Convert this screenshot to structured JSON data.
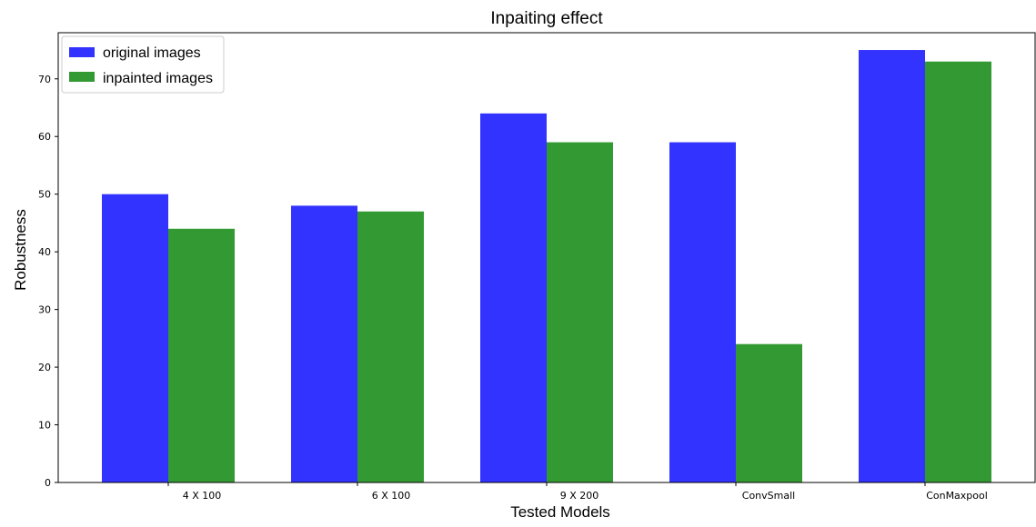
{
  "chart_data": {
    "type": "bar",
    "title": "Inpaiting effect",
    "xlabel": "Tested Models",
    "ylabel": "Robustness",
    "categories": [
      "4 X 100",
      "6 X 100",
      "9 X 200",
      "ConvSmall",
      "ConMaxpool"
    ],
    "series": [
      {
        "name": "original images",
        "color": "#3333ff",
        "values": [
          50,
          48,
          64,
          59,
          75
        ]
      },
      {
        "name": "inpainted images",
        "color": "#339933",
        "values": [
          44,
          47,
          59,
          24,
          73
        ]
      }
    ],
    "ylim": [
      0,
      78
    ],
    "yticks": [
      0,
      10,
      20,
      30,
      40,
      50,
      60,
      70
    ],
    "grid": false,
    "legend_position": "top-left"
  }
}
